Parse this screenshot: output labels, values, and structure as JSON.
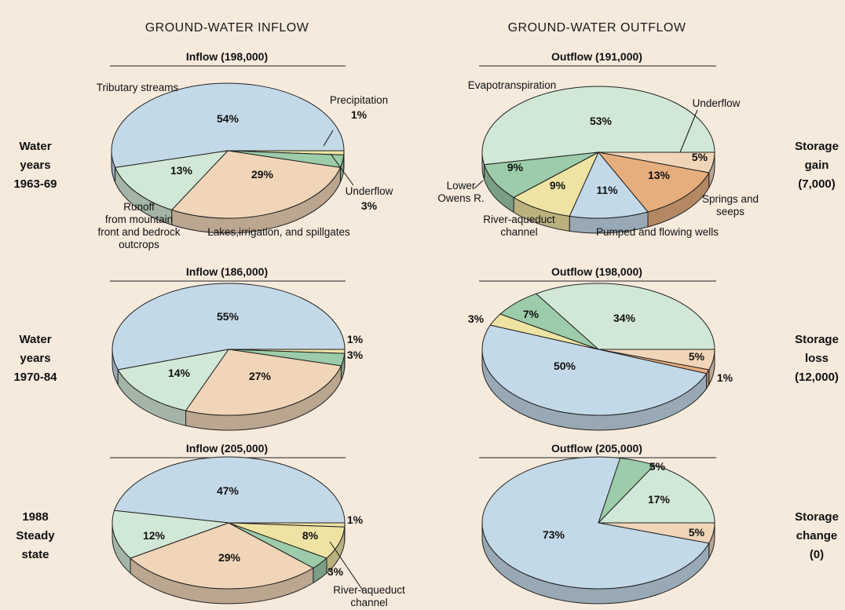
{
  "colors": {
    "blue": "#c3d9e8",
    "green_light": "#d2e8d6",
    "green_mid": "#9ccca9",
    "tan": "#f0d5b8",
    "orange": "#e7ae7d",
    "yellow": "#eee3a3",
    "background": "#f6eadc"
  },
  "headers": {
    "inflow": "GROUND-WATER INFLOW",
    "outflow": "GROUND-WATER OUTFLOW"
  },
  "rows": [
    {
      "label": [
        "Water",
        "years",
        "1963-69"
      ],
      "storage": [
        "Storage",
        "gain",
        "(7,000)"
      ]
    },
    {
      "label": [
        "Water",
        "years",
        "1970-84"
      ],
      "storage": [
        "Storage",
        "loss",
        "(12,000)"
      ]
    },
    {
      "label": [
        "1988",
        "Steady",
        "state"
      ],
      "storage": [
        "Storage",
        "change",
        "(0)"
      ]
    }
  ],
  "chart_data": [
    {
      "type": "pie",
      "title": "Inflow (198,000)",
      "slices": [
        {
          "name": "Tributary streams",
          "value": 54,
          "label": "54%",
          "color": "blue"
        },
        {
          "name": "Precipitation",
          "value": 1,
          "label": "1%",
          "color": "yellow"
        },
        {
          "name": "Underflow",
          "value": 3,
          "label": "3%",
          "color": "green_mid"
        },
        {
          "name": "Lakes,irrigation, and spillgates",
          "value": 29,
          "label": "29%",
          "color": "tan"
        },
        {
          "name": "Runoff from mountain front and bedrock outcrops",
          "value": 13,
          "label": "13%",
          "color": "green_light"
        }
      ],
      "annotations": [
        {
          "lines": [
            "Tributary streams"
          ]
        },
        {
          "lines": [
            "Precipitation"
          ],
          "bold": [
            "1%"
          ]
        },
        {
          "lines": [
            "Underflow"
          ],
          "bold": [
            "3%"
          ]
        },
        {
          "lines": [
            "Lakes,irrigation, and spillgates"
          ]
        },
        {
          "lines": [
            "Runoff",
            "from mountain",
            "front and bedrock",
            "outcrops"
          ]
        }
      ]
    },
    {
      "type": "pie",
      "title": "Outflow (191,000)",
      "slices": [
        {
          "name": "Evapotranspiration",
          "value": 53,
          "label": "53%",
          "color": "green_light"
        },
        {
          "name": "Underflow",
          "value": 5,
          "label": "5%",
          "color": "tan"
        },
        {
          "name": "Springs and seeps",
          "value": 13,
          "label": "13%",
          "color": "orange"
        },
        {
          "name": "Pumped and flowing wells",
          "value": 11,
          "label": "11%",
          "color": "blue"
        },
        {
          "name": "River-aqueduct channel",
          "value": 9,
          "label": "9%",
          "color": "yellow"
        },
        {
          "name": "Lower Owens R.",
          "value": 9,
          "label": "9%",
          "color": "green_mid"
        }
      ],
      "annotations": [
        {
          "lines": [
            "Evapotranspiration"
          ]
        },
        {
          "lines": [
            "Underflow"
          ]
        },
        {
          "lines": [
            "Springs and",
            "seeps"
          ]
        },
        {
          "lines": [
            "Pumped and flowing wells"
          ]
        },
        {
          "lines": [
            "River-aqueduct",
            "channel"
          ]
        },
        {
          "lines": [
            "Lower",
            "Owens R."
          ]
        }
      ]
    },
    {
      "type": "pie",
      "title": "Inflow (186,000)",
      "slices": [
        {
          "name": "Tributary streams",
          "value": 55,
          "label": "55%",
          "color": "blue"
        },
        {
          "name": "Precipitation",
          "value": 1,
          "label": "1%",
          "color": "yellow"
        },
        {
          "name": "Underflow",
          "value": 3,
          "label": "3%",
          "color": "green_mid"
        },
        {
          "name": "Lakes,irrigation, and spillgates",
          "value": 27,
          "label": "27%",
          "color": "tan"
        },
        {
          "name": "Runoff from mountain front and bedrock outcrops",
          "value": 14,
          "label": "14%",
          "color": "green_light"
        }
      ]
    },
    {
      "type": "pie",
      "title": "Outflow (198,000)",
      "slices": [
        {
          "name": "Evapotranspiration",
          "value": 34,
          "label": "34%",
          "color": "green_light"
        },
        {
          "name": "Underflow",
          "value": 5,
          "label": "5%",
          "color": "tan"
        },
        {
          "name": "Springs and seeps",
          "value": 1,
          "label": "1%",
          "color": "orange"
        },
        {
          "name": "Pumped and flowing wells",
          "value": 50,
          "label": "50%",
          "color": "blue"
        },
        {
          "name": "River-aqueduct channel",
          "value": 3,
          "label": "3%",
          "color": "yellow"
        },
        {
          "name": "Lower Owens R.",
          "value": 7,
          "label": "7%",
          "color": "green_mid"
        }
      ]
    },
    {
      "type": "pie",
      "title": "Inflow (205,000)",
      "slices": [
        {
          "name": "Tributary streams",
          "value": 47,
          "label": "47%",
          "color": "blue"
        },
        {
          "name": "Precipitation",
          "value": 1,
          "label": "1%",
          "color": "yellow"
        },
        {
          "name": "River-aqueduct channel",
          "value": 8,
          "label": "8%",
          "color": "yellow"
        },
        {
          "name": "Underflow",
          "value": 3,
          "label": "3%",
          "color": "green_mid"
        },
        {
          "name": "Lakes,irrigation, and spillgates",
          "value": 29,
          "label": "29%",
          "color": "tan"
        },
        {
          "name": "Runoff from mountain front and bedrock outcrops",
          "value": 12,
          "label": "12%",
          "color": "green_light"
        }
      ],
      "annotations": [
        {
          "lines": [
            "River-aqueduct",
            "channel"
          ]
        }
      ]
    },
    {
      "type": "pie",
      "title": "Outflow (205,000)",
      "slices": [
        {
          "name": "Evapotranspiration",
          "value": 17,
          "label": "17%",
          "color": "green_light"
        },
        {
          "name": "Underflow",
          "value": 5,
          "label": "5%",
          "color": "tan"
        },
        {
          "name": "Pumped and flowing wells",
          "value": 73,
          "label": "73%",
          "color": "blue"
        },
        {
          "name": "Lower Owens R.",
          "value": 5,
          "label": "5%",
          "color": "green_mid"
        }
      ]
    }
  ]
}
